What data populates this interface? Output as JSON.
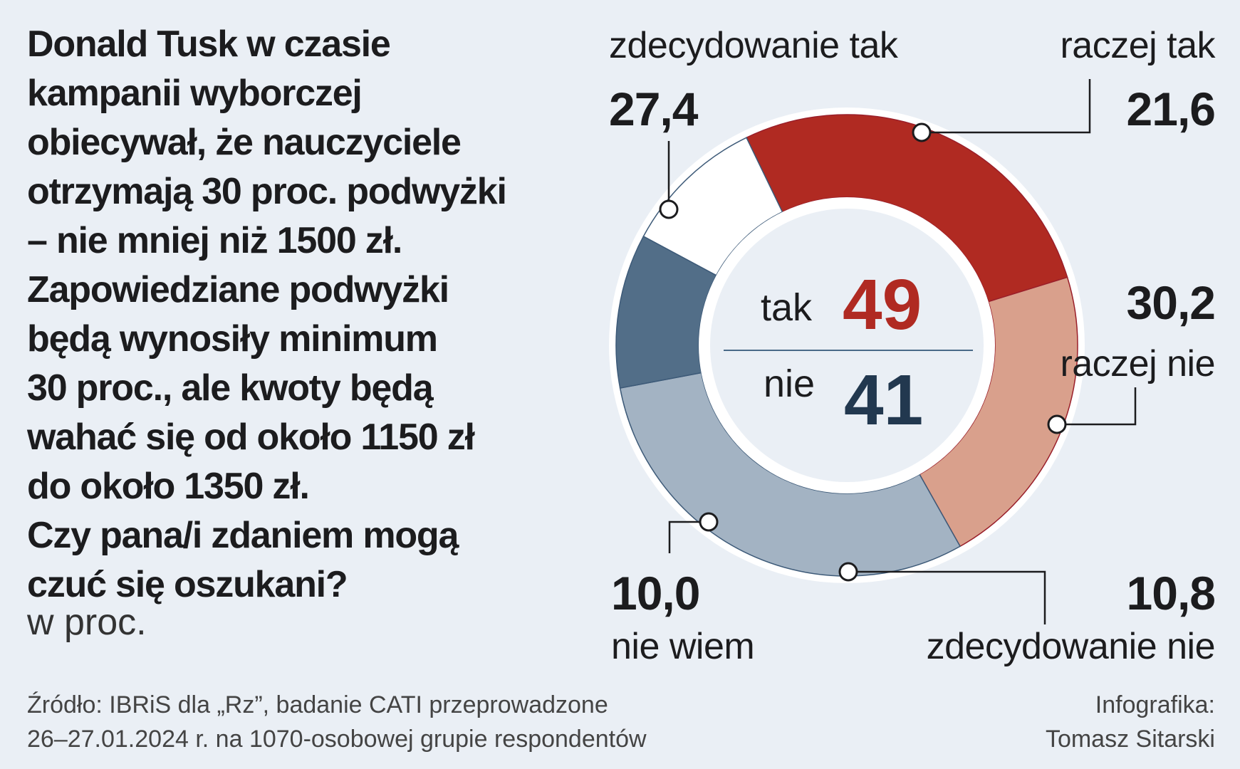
{
  "title_lines": [
    "Donald Tusk w czasie",
    "kampanii wyborczej",
    "obiecywał, że nauczyciele",
    "otrzymają 30 proc. podwyżki",
    "– nie mniej niż 1500 zł.",
    "Zapowiedziane podwyżki",
    "będą wynosiły minimum",
    "30 proc., ale kwoty będą",
    "wahać się od około 1150 zł",
    "do około 1350 zł.",
    "Czy pana/i zdaniem mogą",
    "czuć się oszukani?"
  ],
  "unit": "w proc.",
  "source_lines": [
    "Źródło: IBRiS dla „Rz”, badanie CATI przeprowadzone",
    "26–27.01.2024 r. na 1070-osobowej grupie respondentów"
  ],
  "credit_lines": [
    "Infografika:",
    "Tomasz Sitarski"
  ],
  "chart_data": {
    "type": "pie",
    "donut": true,
    "categories": [
      "zdecydowanie tak",
      "raczej tak",
      "raczej nie",
      "zdecydowanie nie",
      "nie wiem"
    ],
    "values": [
      27.4,
      21.6,
      30.2,
      10.8,
      10.0
    ],
    "value_labels": [
      "27,4",
      "21,6",
      "30,2",
      "10,8",
      "10,0"
    ],
    "colors": [
      "#b02a22",
      "#d9a08c",
      "#a3b3c3",
      "#526e88",
      "#ffffff"
    ],
    "center": {
      "yes_label": "tak",
      "yes_value": "49",
      "yes_color": "#b02a22",
      "no_label": "nie",
      "no_value": "41",
      "no_color": "#22384f"
    }
  }
}
